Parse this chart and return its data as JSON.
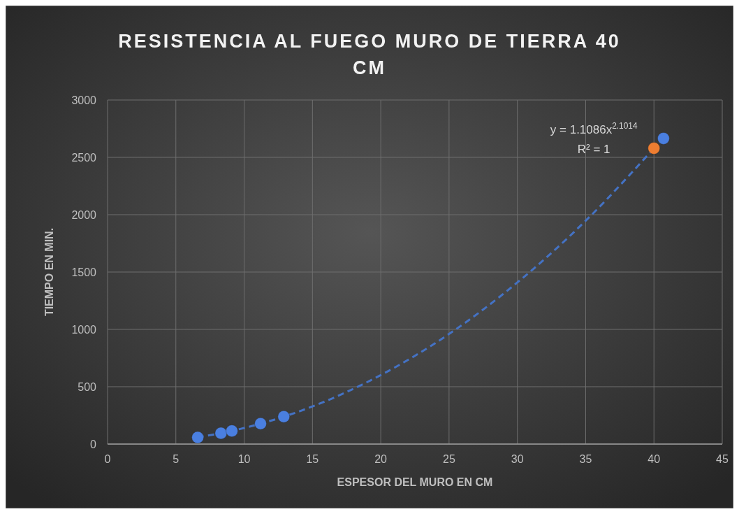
{
  "chart_data": {
    "type": "scatter",
    "title": "RESISTENCIA AL FUEGO MURO DE TIERRA 40 CM",
    "xlabel": "ESPESOR DEL MURO EN CM",
    "ylabel": "TIEMPO EN MIN.",
    "xlim": [
      0,
      45
    ],
    "xticks": [
      0,
      5,
      10,
      15,
      20,
      25,
      30,
      35,
      40,
      45
    ],
    "ylim": [
      0,
      3000
    ],
    "yticks": [
      0,
      500,
      1000,
      1500,
      2000,
      2500,
      3000
    ],
    "grid": true,
    "marker": "circle",
    "annotations": [
      "y = 1.1086x$^{2.1014}$",
      "R² = 1"
    ],
    "series": [
      {
        "type": "line",
        "line_style": "dashed",
        "marker": "none",
        "color": "#4472c4",
        "x": [
          6.6,
          10,
          15,
          20,
          25,
          30,
          35,
          40
        ],
        "values": [
          58,
          140,
          328,
          601,
          960,
          1409,
          1947,
          2579
        ]
      },
      {
        "color": "#4a7fe0",
        "x": [
          6.6,
          8.3,
          9.1,
          11.2,
          12.9,
          40.7
        ],
        "values": [
          58,
          95,
          115,
          178,
          239,
          2665
        ]
      },
      {
        "color": "#ed7d31",
        "x": [
          40
        ],
        "values": [
          2579
        ]
      }
    ]
  }
}
